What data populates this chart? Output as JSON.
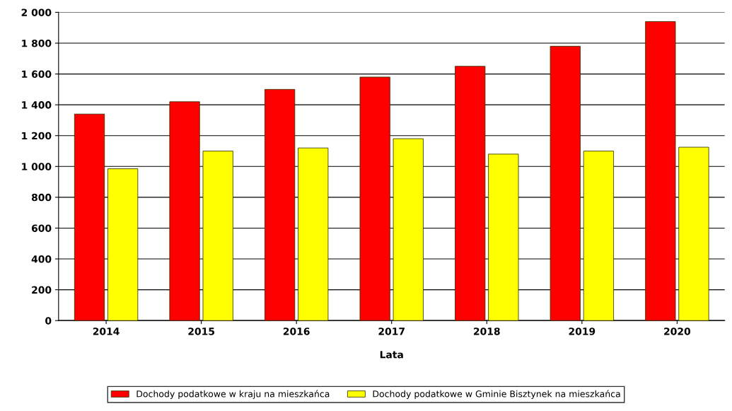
{
  "chart_data": {
    "type": "bar",
    "xlabel": "Lata",
    "categories": [
      "2014",
      "2015",
      "2016",
      "2017",
      "2018",
      "2019",
      "2020"
    ],
    "series": [
      {
        "name": "Dochody podatkowe w kraju na mieszkańca",
        "color": "#ff0000",
        "values": [
          1340,
          1420,
          1500,
          1580,
          1650,
          1780,
          1940
        ]
      },
      {
        "name": "Dochody podatkowe w Gminie Bisztynek na mieszkańca",
        "color": "#ffff00",
        "values": [
          985,
          1100,
          1120,
          1180,
          1080,
          1100,
          1125
        ]
      }
    ],
    "ylim": [
      0,
      2000
    ],
    "yticks": [
      0,
      200,
      400,
      600,
      800,
      {
        "value": 1000,
        "label": "1 000"
      },
      {
        "value": 1200,
        "label": "1 200"
      },
      {
        "value": 1400,
        "label": "1 400"
      },
      {
        "value": 1600,
        "label": "1 600"
      },
      {
        "value": 1800,
        "label": "1 800"
      },
      {
        "value": 2000,
        "label": "2 000"
      }
    ],
    "grid": "y",
    "legend": "bottom"
  }
}
